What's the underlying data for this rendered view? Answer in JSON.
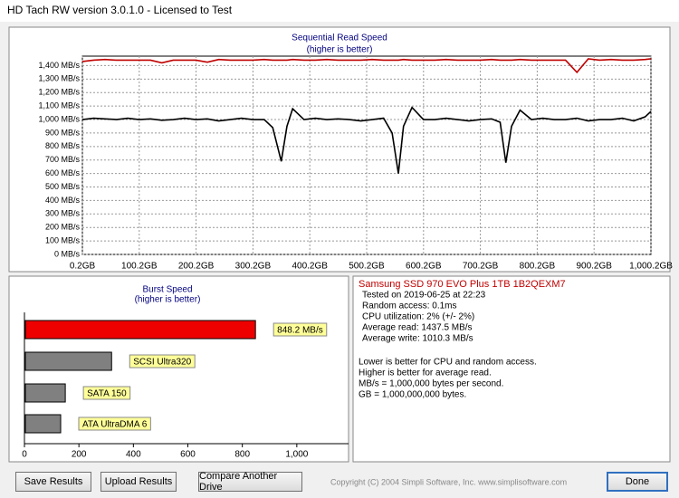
{
  "window_title": "HD Tach RW version 3.0.1.0 - Licensed to Test",
  "chart_data": [
    {
      "type": "line",
      "title": "Sequential Read Speed",
      "subtitle": "(higher is better)",
      "x": [
        0.2,
        20,
        40,
        60,
        80,
        100,
        120,
        140,
        160,
        180,
        200,
        220,
        240,
        260,
        280,
        300,
        320,
        335,
        350,
        360,
        370,
        390,
        410,
        430,
        450,
        470,
        490,
        510,
        530,
        545,
        556,
        565,
        580,
        600,
        620,
        640,
        660,
        680,
        700,
        720,
        735,
        745,
        755,
        770,
        790,
        810,
        830,
        850,
        870,
        890,
        910,
        930,
        950,
        970,
        990,
        1000.2
      ],
      "series": [
        {
          "color": "#c00000",
          "values": [
            1430,
            1440,
            1445,
            1440,
            1440,
            1440,
            1440,
            1420,
            1440,
            1440,
            1440,
            1425,
            1445,
            1440,
            1440,
            1440,
            1445,
            1440,
            1440,
            1440,
            1445,
            1440,
            1440,
            1445,
            1440,
            1440,
            1440,
            1445,
            1440,
            1440,
            1440,
            1445,
            1440,
            1440,
            1440,
            1445,
            1440,
            1440,
            1440,
            1445,
            1440,
            1440,
            1440,
            1445,
            1440,
            1440,
            1440,
            1440,
            1350,
            1450,
            1440,
            1445,
            1440,
            1440,
            1445,
            1450
          ]
        },
        {
          "color": "#000000",
          "values": [
            1000,
            1010,
            1005,
            1000,
            1010,
            1000,
            1005,
            995,
            1000,
            1010,
            1000,
            1005,
            990,
            1000,
            1010,
            1000,
            1000,
            940,
            690,
            950,
            1080,
            1000,
            1010,
            1000,
            1005,
            1000,
            990,
            1000,
            1010,
            900,
            600,
            950,
            1090,
            1000,
            1000,
            1010,
            1000,
            990,
            1000,
            1005,
            980,
            680,
            950,
            1070,
            1000,
            1010,
            1000,
            1000,
            1010,
            990,
            1000,
            1000,
            1010,
            990,
            1020,
            1060
          ]
        }
      ],
      "xlim": [
        0.2,
        1000.2
      ],
      "ylim": [
        0,
        1470
      ],
      "xticks": [
        {
          "value": 0.2,
          "label": "0.2GB"
        },
        {
          "value": 100.2,
          "label": "100.2GB"
        },
        {
          "value": 200.2,
          "label": "200.2GB"
        },
        {
          "value": 300.2,
          "label": "300.2GB"
        },
        {
          "value": 400.2,
          "label": "400.2GB"
        },
        {
          "value": 500.2,
          "label": "500.2GB"
        },
        {
          "value": 600.2,
          "label": "600.2GB"
        },
        {
          "value": 700.2,
          "label": "700.2GB"
        },
        {
          "value": 800.2,
          "label": "800.2GB"
        },
        {
          "value": 900.2,
          "label": "900.2GB"
        },
        {
          "value": 1000.2,
          "label": "1,000.2GB"
        }
      ],
      "yticks": [
        {
          "value": 0,
          "label": "0 MB/s"
        },
        {
          "value": 100,
          "label": "100 MB/s"
        },
        {
          "value": 200,
          "label": "200 MB/s"
        },
        {
          "value": 300,
          "label": "300 MB/s"
        },
        {
          "value": 400,
          "label": "400 MB/s"
        },
        {
          "value": 500,
          "label": "500 MB/s"
        },
        {
          "value": 600,
          "label": "600 MB/s"
        },
        {
          "value": 700,
          "label": "700 MB/s"
        },
        {
          "value": 800,
          "label": "800 MB/s"
        },
        {
          "value": 900,
          "label": "900 MB/s"
        },
        {
          "value": 1000,
          "label": "1,000 MB/s"
        },
        {
          "value": 1100,
          "label": "1,100 MB/s"
        },
        {
          "value": 1200,
          "label": "1,200 MB/s"
        },
        {
          "value": 1300,
          "label": "1,300 MB/s"
        },
        {
          "value": 1400,
          "label": "1,400 MB/s"
        }
      ],
      "grid": true
    },
    {
      "type": "bar",
      "orientation": "horizontal",
      "title": "Burst Speed",
      "subtitle": "(higher is better)",
      "categories": [
        null,
        "SCSI Ultra320",
        "SATA 150",
        "ATA UltraDMA 6"
      ],
      "values": [
        848.2,
        320,
        150,
        133
      ],
      "value_labels": [
        "848.2 MB/s",
        null,
        null,
        null
      ],
      "colors": [
        "#ee0000",
        "#808080",
        "#808080",
        "#808080"
      ],
      "xlim": [
        0,
        1190
      ],
      "xticks": [
        0,
        200,
        400,
        600,
        800,
        {
          "value": 1000,
          "label": "1,000"
        }
      ]
    }
  ],
  "info": {
    "heading": "Samsung SSD 970 EVO Plus 1TB 1B2QEXM7",
    "lines": [
      "Tested on 2019-06-25 at 22:23",
      "Random access: 0.1ms",
      "CPU utilization: 2% (+/- 2%)",
      "Average read: 1437.5 MB/s",
      "Average write: 1010.3 MB/s"
    ],
    "notes": [
      "Lower is better for CPU and random access.",
      "Higher is better for average read.",
      "MB/s = 1,000,000 bytes per second.",
      "GB = 1,000,000,000 bytes."
    ]
  },
  "buttons": [
    "Save Results",
    "Upload Results",
    "Compare Another Drive",
    "Done"
  ],
  "copyright": "Copyright (C) 2004 Simpli Software, Inc. www.simplisoftware.com"
}
